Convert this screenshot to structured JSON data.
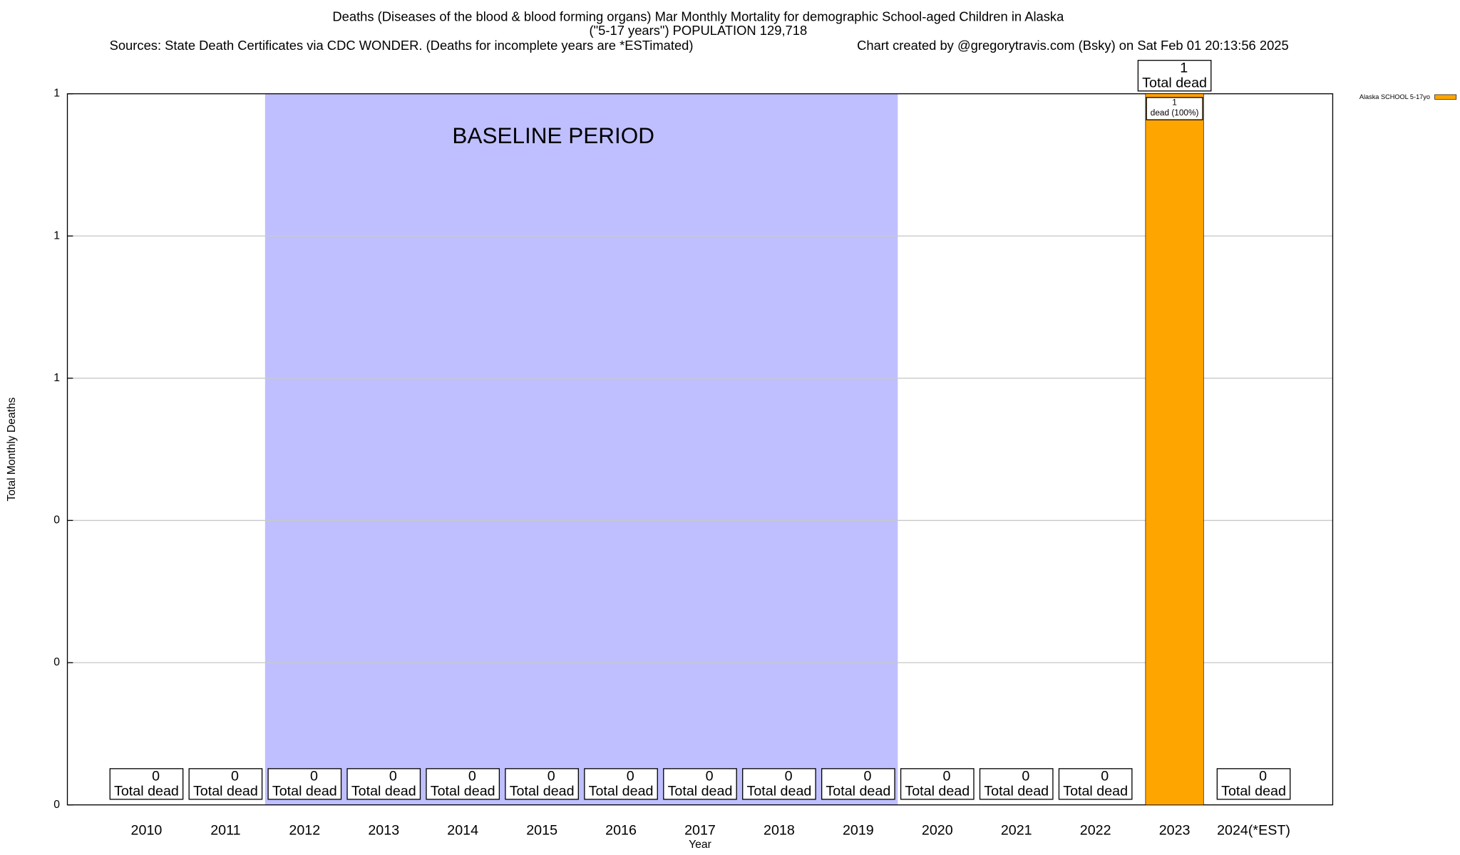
{
  "chart_data": {
    "type": "bar",
    "title": "Deaths (Diseases of the blood & blood forming organs) Mar Monthly Mortality for demographic School-aged Children in Alaska",
    "subtitle": "(\"5-17 years\") POPULATION 129,718",
    "sources": "Sources: State Death Certificates via CDC WONDER. (Deaths for incomplete years are *ESTimated)",
    "credit": "Chart created by @gregorytravis.com (Bsky) on Sat Feb 01 20:13:56 2025",
    "x_label": "Year",
    "y_label": "Total Monthly Deaths",
    "categories": [
      "2010",
      "2011",
      "2012",
      "2013",
      "2014",
      "2015",
      "2016",
      "2017",
      "2018",
      "2019",
      "2020",
      "2021",
      "2022",
      "2023",
      "2024(*EST)"
    ],
    "series": [
      {
        "name": "Alaska SCHOOL 5-17yo",
        "color": "#ffa500",
        "values": [
          0,
          0,
          0,
          0,
          0,
          0,
          0,
          0,
          0,
          0,
          0,
          0,
          0,
          1,
          0
        ]
      }
    ],
    "total_label_text": "Total dead",
    "inner_labels": [
      null,
      null,
      null,
      null,
      null,
      null,
      null,
      null,
      null,
      null,
      null,
      null,
      null,
      "dead (100%)",
      null
    ],
    "baseline": {
      "label": "BASELINE PERIOD",
      "start": "2012",
      "end": "2019",
      "color": "#bfbfff"
    },
    "ylim": [
      0,
      1
    ],
    "yticks": [
      0,
      {
        "value": 0.2,
        "label": "0"
      },
      {
        "value": 0.4,
        "label": "0"
      },
      {
        "value": 0.6,
        "label": "1"
      },
      {
        "value": 0.8,
        "label": "1"
      },
      1
    ],
    "grid": true,
    "legend": "top-right"
  }
}
